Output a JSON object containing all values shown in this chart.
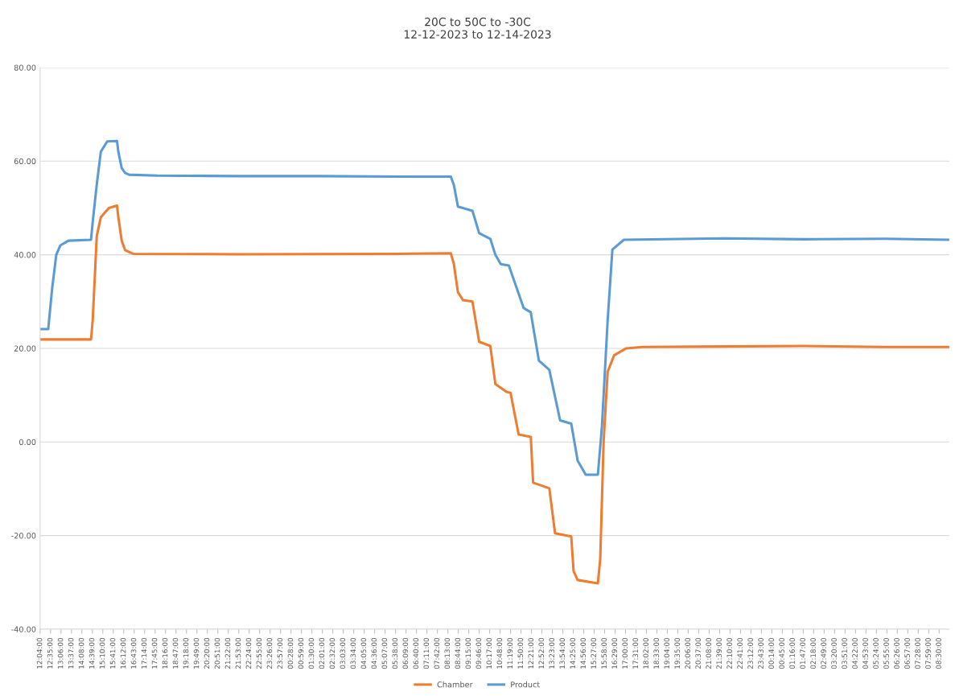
{
  "chart_data": {
    "type": "line",
    "title": "20C to 50C to -30C\n12-12-2023 to 12-14-2023",
    "series": [
      {
        "name": "Chamber",
        "color": "#ed7d31",
        "x": [
          "2023-12-12T12:04",
          "2023-12-12T14:35",
          "2023-12-12T14:40",
          "2023-12-12T14:52",
          "2023-12-12T15:04",
          "2023-12-12T15:28",
          "2023-12-12T15:52",
          "2023-12-12T15:56",
          "2023-12-12T16:06",
          "2023-12-12T16:16",
          "2023-12-12T16:40",
          "2023-12-12T21:52",
          "2023-12-13T05:51",
          "2023-12-13T08:22",
          "2023-12-13T08:31",
          "2023-12-13T08:43",
          "2023-12-13T08:58",
          "2023-12-13T09:26",
          "2023-12-13T09:46",
          "2023-12-13T10:19",
          "2023-12-13T10:34",
          "2023-12-13T11:07",
          "2023-12-13T11:19",
          "2023-12-13T11:43",
          "2023-12-13T12:19",
          "2023-12-13T12:26",
          "2023-12-13T13:14",
          "2023-12-13T13:31",
          "2023-12-13T14:19",
          "2023-12-13T14:26",
          "2023-12-13T14:38",
          "2023-12-13T15:38",
          "2023-12-13T15:45",
          "2023-12-13T15:55",
          "2023-12-13T16:07",
          "2023-12-13T16:26",
          "2023-12-13T17:02",
          "2023-12-13T17:50",
          "2023-12-13T21:50",
          "2023-12-14T01:49",
          "2023-12-14T05:49",
          "2023-12-14T09:00"
        ],
        "values": [
          21.9,
          21.9,
          26,
          44,
          48,
          50,
          50.5,
          48,
          43,
          41,
          40.2,
          40.1,
          40.2,
          40.3,
          38,
          32,
          30.3,
          30,
          21.4,
          20.5,
          12.4,
          10.7,
          10.5,
          1.6,
          1.1,
          -8.7,
          -9.9,
          -19.5,
          -20.2,
          -27.6,
          -29.5,
          -30.2,
          -25,
          0,
          15,
          18.5,
          20,
          20.3,
          20.4,
          20.5,
          20.3,
          20.3
        ]
      },
      {
        "name": "Product",
        "color": "#5b9bd5",
        "x": [
          "2023-12-12T12:04",
          "2023-12-12T12:28",
          "2023-12-12T12:40",
          "2023-12-12T12:52",
          "2023-12-12T13:04",
          "2023-12-12T13:28",
          "2023-12-12T14:35",
          "2023-12-12T14:40",
          "2023-12-12T14:52",
          "2023-12-12T15:04",
          "2023-12-12T15:23",
          "2023-12-12T15:52",
          "2023-12-12T15:56",
          "2023-12-12T16:06",
          "2023-12-12T16:16",
          "2023-12-12T16:28",
          "2023-12-12T17:52",
          "2023-12-12T21:52",
          "2023-12-13T01:51",
          "2023-12-13T05:51",
          "2023-12-13T08:22",
          "2023-12-13T08:31",
          "2023-12-13T08:43",
          "2023-12-13T09:26",
          "2023-12-13T09:46",
          "2023-12-13T10:19",
          "2023-12-13T10:34",
          "2023-12-13T10:50",
          "2023-12-13T11:14",
          "2023-12-13T11:58",
          "2023-12-13T12:19",
          "2023-12-13T12:43",
          "2023-12-13T13:14",
          "2023-12-13T13:46",
          "2023-12-13T14:19",
          "2023-12-13T14:38",
          "2023-12-13T15:02",
          "2023-12-13T15:38",
          "2023-12-13T15:50",
          "2023-12-13T16:07",
          "2023-12-13T16:21",
          "2023-12-13T16:55",
          "2023-12-13T21:50",
          "2023-12-14T01:49",
          "2023-12-14T05:49",
          "2023-12-14T09:00"
        ],
        "values": [
          24.1,
          24.1,
          33,
          40,
          42,
          43,
          43.2,
          47,
          55,
          62,
          64.2,
          64.3,
          62,
          58.5,
          57.5,
          57.1,
          56.9,
          56.8,
          56.8,
          56.7,
          56.7,
          54.9,
          50.3,
          49.4,
          44.6,
          43.4,
          40,
          38,
          37.7,
          28.6,
          27.7,
          17.4,
          15.4,
          4.6,
          3.9,
          -4,
          -7,
          -7,
          3.3,
          26,
          41.1,
          43.2,
          43.5,
          43.3,
          43.4,
          43.2
        ]
      }
    ],
    "xlim": [
      "2023-12-12T12:04",
      "2023-12-14T09:00"
    ],
    "xticks": [
      {
        "value": "2023-12-12T12:04",
        "label": "12:04:00"
      },
      {
        "value": "2023-12-12T12:35",
        "label": "12:35:00"
      },
      {
        "value": "2023-12-12T13:06",
        "label": "13:06:00"
      },
      {
        "value": "2023-12-12T13:37",
        "label": "13:37:00"
      },
      {
        "value": "2023-12-12T14:08",
        "label": "14:08:00"
      },
      {
        "value": "2023-12-12T14:39",
        "label": "14:39:00"
      },
      {
        "value": "2023-12-12T15:10",
        "label": "15:10:00"
      },
      {
        "value": "2023-12-12T15:41",
        "label": "15:41:00"
      },
      {
        "value": "2023-12-12T16:12",
        "label": "16:12:00"
      },
      {
        "value": "2023-12-12T16:43",
        "label": "16:43:00"
      },
      {
        "value": "2023-12-12T17:14",
        "label": "17:14:00"
      },
      {
        "value": "2023-12-12T17:45",
        "label": "17:45:00"
      },
      {
        "value": "2023-12-12T18:16",
        "label": "18:16:00"
      },
      {
        "value": "2023-12-12T18:47",
        "label": "18:47:00"
      },
      {
        "value": "2023-12-12T19:18",
        "label": "19:18:00"
      },
      {
        "value": "2023-12-12T19:49",
        "label": "19:49:00"
      },
      {
        "value": "2023-12-12T20:20",
        "label": "20:20:00"
      },
      {
        "value": "2023-12-12T20:51",
        "label": "20:51:00"
      },
      {
        "value": "2023-12-12T21:22",
        "label": "21:22:00"
      },
      {
        "value": "2023-12-12T21:53",
        "label": "21:53:00"
      },
      {
        "value": "2023-12-12T22:24",
        "label": "22:24:00"
      },
      {
        "value": "2023-12-12T22:55",
        "label": "22:55:00"
      },
      {
        "value": "2023-12-12T23:26",
        "label": "23:26:00"
      },
      {
        "value": "2023-12-12T23:57",
        "label": "23:57:00"
      },
      {
        "value": "2023-12-13T00:28",
        "label": "00:28:00"
      },
      {
        "value": "2023-12-13T00:59",
        "label": "00:59:00"
      },
      {
        "value": "2023-12-13T01:30",
        "label": "01:30:00"
      },
      {
        "value": "2023-12-13T02:01",
        "label": "02:01:00"
      },
      {
        "value": "2023-12-13T02:32",
        "label": "02:32:00"
      },
      {
        "value": "2023-12-13T03:03",
        "label": "03:03:00"
      },
      {
        "value": "2023-12-13T03:34",
        "label": "03:34:00"
      },
      {
        "value": "2023-12-13T04:05",
        "label": "04:05:00"
      },
      {
        "value": "2023-12-13T04:36",
        "label": "04:36:00"
      },
      {
        "value": "2023-12-13T05:07",
        "label": "05:07:00"
      },
      {
        "value": "2023-12-13T05:38",
        "label": "05:38:00"
      },
      {
        "value": "2023-12-13T06:09",
        "label": "06:09:00"
      },
      {
        "value": "2023-12-13T06:40",
        "label": "06:40:00"
      },
      {
        "value": "2023-12-13T07:11",
        "label": "07:11:00"
      },
      {
        "value": "2023-12-13T07:42",
        "label": "07:42:00"
      },
      {
        "value": "2023-12-13T08:13",
        "label": "08:13:00"
      },
      {
        "value": "2023-12-13T08:44",
        "label": "08:44:00"
      },
      {
        "value": "2023-12-13T09:15",
        "label": "09:15:00"
      },
      {
        "value": "2023-12-13T09:46",
        "label": "09:46:00"
      },
      {
        "value": "2023-12-13T10:17",
        "label": "10:17:00"
      },
      {
        "value": "2023-12-13T10:48",
        "label": "10:48:00"
      },
      {
        "value": "2023-12-13T11:19",
        "label": "11:19:00"
      },
      {
        "value": "2023-12-13T11:50",
        "label": "11:50:00"
      },
      {
        "value": "2023-12-13T12:21",
        "label": "12:21:00"
      },
      {
        "value": "2023-12-13T12:52",
        "label": "12:52:00"
      },
      {
        "value": "2023-12-13T13:23",
        "label": "13:23:00"
      },
      {
        "value": "2023-12-13T13:54",
        "label": "13:54:00"
      },
      {
        "value": "2023-12-13T14:25",
        "label": "14:25:00"
      },
      {
        "value": "2023-12-13T14:56",
        "label": "14:56:00"
      },
      {
        "value": "2023-12-13T15:27",
        "label": "15:27:00"
      },
      {
        "value": "2023-12-13T15:58",
        "label": "15:58:00"
      },
      {
        "value": "2023-12-13T16:29",
        "label": "16:29:00"
      },
      {
        "value": "2023-12-13T17:00",
        "label": "17:00:00"
      },
      {
        "value": "2023-12-13T17:31",
        "label": "17:31:00"
      },
      {
        "value": "2023-12-13T18:02",
        "label": "18:02:00"
      },
      {
        "value": "2023-12-13T18:33",
        "label": "18:33:00"
      },
      {
        "value": "2023-12-13T19:04",
        "label": "19:04:00"
      },
      {
        "value": "2023-12-13T19:35",
        "label": "19:35:00"
      },
      {
        "value": "2023-12-13T20:06",
        "label": "20:06:00"
      },
      {
        "value": "2023-12-13T20:37",
        "label": "20:37:00"
      },
      {
        "value": "2023-12-13T21:08",
        "label": "21:08:00"
      },
      {
        "value": "2023-12-13T21:39",
        "label": "21:39:00"
      },
      {
        "value": "2023-12-13T22:10",
        "label": "22:10:00"
      },
      {
        "value": "2023-12-13T22:41",
        "label": "22:41:00"
      },
      {
        "value": "2023-12-13T23:12",
        "label": "23:12:00"
      },
      {
        "value": "2023-12-13T23:43",
        "label": "23:43:00"
      },
      {
        "value": "2023-12-14T00:14",
        "label": "00:14:00"
      },
      {
        "value": "2023-12-14T00:45",
        "label": "00:45:00"
      },
      {
        "value": "2023-12-14T01:16",
        "label": "01:16:00"
      },
      {
        "value": "2023-12-14T01:47",
        "label": "01:47:00"
      },
      {
        "value": "2023-12-14T02:18",
        "label": "02:18:00"
      },
      {
        "value": "2023-12-14T02:49",
        "label": "02:49:00"
      },
      {
        "value": "2023-12-14T03:20",
        "label": "03:20:00"
      },
      {
        "value": "2023-12-14T03:51",
        "label": "03:51:00"
      },
      {
        "value": "2023-12-14T04:22",
        "label": "04:22:00"
      },
      {
        "value": "2023-12-14T04:53",
        "label": "04:53:00"
      },
      {
        "value": "2023-12-14T05:24",
        "label": "05:24:00"
      },
      {
        "value": "2023-12-14T05:55",
        "label": "05:55:00"
      },
      {
        "value": "2023-12-14T06:26",
        "label": "06:26:00"
      },
      {
        "value": "2023-12-14T06:57",
        "label": "06:57:00"
      },
      {
        "value": "2023-12-14T07:28",
        "label": "07:28:00"
      },
      {
        "value": "2023-12-14T07:59",
        "label": "07:59:00"
      },
      {
        "value": "2023-12-14T08:30",
        "label": "08:30:00"
      }
    ],
    "ylim": [
      -40,
      80
    ],
    "yticks": [
      {
        "value": -40,
        "label": "-40.00"
      },
      {
        "value": -20,
        "label": "-20.00"
      },
      {
        "value": 0,
        "label": "0.00"
      },
      {
        "value": 20,
        "label": "20.00"
      },
      {
        "value": 40,
        "label": "40.00"
      },
      {
        "value": 60,
        "label": "60.00"
      },
      {
        "value": 80,
        "label": "80.00"
      }
    ],
    "grid": "y",
    "legend": "bottom",
    "marker": "none",
    "line_style": "solid"
  }
}
